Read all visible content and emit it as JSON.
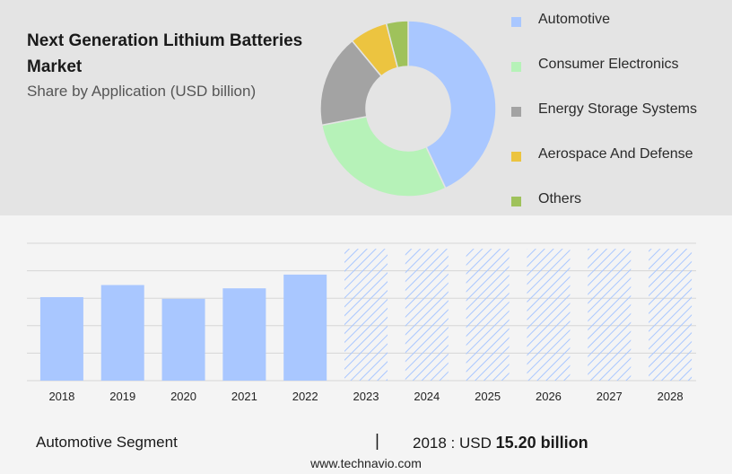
{
  "title": "Next Generation Lithium Batteries Market",
  "subtitle": "Share by Application (USD billion)",
  "chart_data": [
    {
      "type": "pie",
      "variant": "donut",
      "labels": [
        "Automotive",
        "Consumer Electronics",
        "Energy Storage Systems",
        "Aerospace And Defense",
        "Others"
      ],
      "values": [
        43,
        29,
        17,
        7,
        4
      ],
      "colors": [
        "#a9c7ff",
        "#b6f2b8",
        "#a3a3a3",
        "#ecc440",
        "#9fc25b"
      ],
      "legend_position": "right"
    },
    {
      "type": "bar",
      "categories": [
        "2018",
        "2019",
        "2020",
        "2021",
        "2022",
        "2023",
        "2024",
        "2025",
        "2026",
        "2027",
        "2028"
      ],
      "values": [
        15.2,
        17.4,
        14.9,
        16.8,
        19.3,
        null,
        null,
        null,
        null,
        null,
        null
      ],
      "forecast_categories": [
        "2023",
        "2024",
        "2025",
        "2026",
        "2027",
        "2028"
      ],
      "forecast_fill": "hatched",
      "ylim": [
        0,
        25
      ],
      "grid": true,
      "bar_color": "#a9c7ff",
      "hatch_color": "#a9c7ff"
    }
  ],
  "footer": {
    "segment": "Automotive Segment",
    "separator": "|",
    "value_prefix": "2018 : USD",
    "value_bold": "15.20 billion"
  },
  "source": "www.technavio.com"
}
